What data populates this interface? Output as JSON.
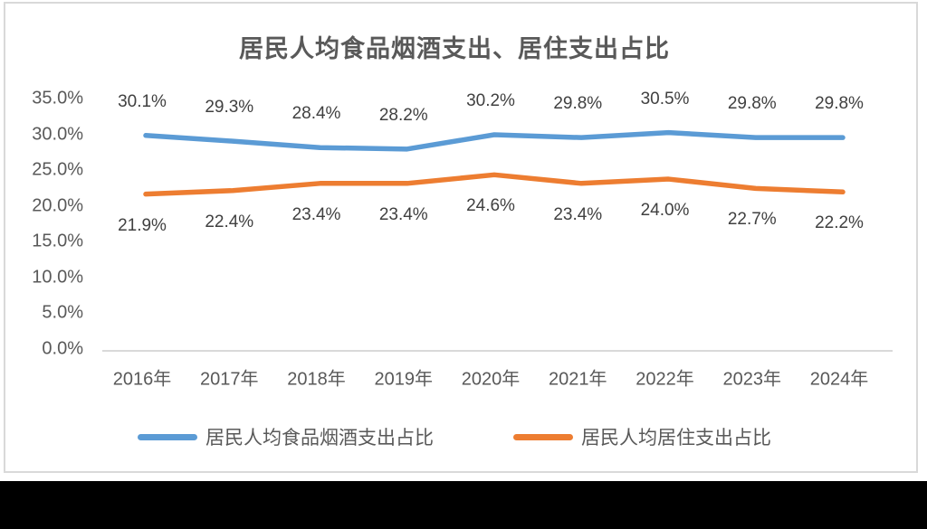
{
  "chart_data": {
    "type": "line",
    "title": "居民人均食品烟酒支出、居住支出占比",
    "categories": [
      "2016年",
      "2017年",
      "2018年",
      "2019年",
      "2020年",
      "2021年",
      "2022年",
      "2023年",
      "2024年"
    ],
    "series": [
      {
        "name": "居民人均食品烟酒支出占比",
        "color": "#5B9BD5",
        "values": [
          30.1,
          29.3,
          28.4,
          28.2,
          30.2,
          29.8,
          30.5,
          29.8,
          29.8
        ],
        "data_labels": [
          "30.1%",
          "29.3%",
          "28.4%",
          "28.2%",
          "30.2%",
          "29.8%",
          "30.5%",
          "29.8%",
          "29.8%"
        ],
        "label_position": "above"
      },
      {
        "name": "居民人均居住支出占比",
        "color": "#ED7D31",
        "values": [
          21.9,
          22.4,
          23.4,
          23.4,
          24.6,
          23.4,
          24.0,
          22.7,
          22.2
        ],
        "data_labels": [
          "21.9%",
          "22.4%",
          "23.4%",
          "23.4%",
          "24.6%",
          "23.4%",
          "24.0%",
          "22.7%",
          "22.2%"
        ],
        "label_position": "below"
      }
    ],
    "y_axis": {
      "min": 0,
      "max": 35,
      "step": 5,
      "tick_labels": [
        "0.0%",
        "5.0%",
        "10.0%",
        "15.0%",
        "20.0%",
        "25.0%",
        "30.0%",
        "35.0%"
      ]
    },
    "grid": "off",
    "legend_position": "bottom",
    "axis_line_color": "#d9d9d9",
    "panel_border_color": "#d9d9d9"
  }
}
